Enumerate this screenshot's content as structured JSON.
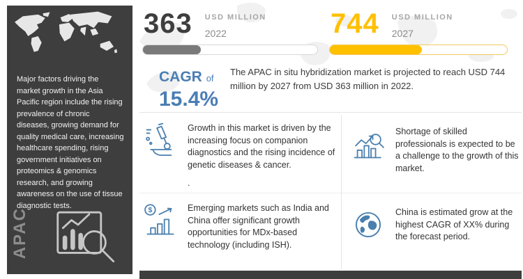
{
  "sidebar": {
    "description": "Major factors driving the market growth in the Asia Pacific region include the rising prevalence of chronic diseases, growing demand for quality medical care, increasing healthcare spending, rising government initiatives on proteomics & genomics research, and growing awareness on the use of tissue diagnostic tests.",
    "region_label": "APAC"
  },
  "stats": [
    {
      "value": "363",
      "unit": "USD MILLION",
      "year": "2022",
      "fill_percent": 33,
      "bar_color": "#7a7a7a"
    },
    {
      "value": "744",
      "unit": "USD MILLION",
      "year": "2027",
      "fill_percent": 52,
      "bar_color": "#ffc000"
    }
  ],
  "cagr": {
    "label": "CAGR",
    "preposition": "of",
    "value": "15.4%"
  },
  "projection_text": "The APAC in situ hybridization market is projected to reach USD 744 million by 2027 from USD 363 million in 2022.",
  "facts": [
    {
      "icon": "microscope-diagnostics-icon",
      "text": "Growth in this market is driven by the increasing focus on companion diagnostics and the rising incidence of genetic diseases & cancer.",
      "note": "."
    },
    {
      "icon": "chart-magnifier-icon",
      "text": "Shortage of skilled professionals is expected to be a challenge to the growth of this market."
    },
    {
      "icon": "bar-chart-dollar-icon",
      "text": "Emerging markets such as India and China offer significant growth opportunities for MDx-based technology (including ISH)."
    },
    {
      "icon": "globe-icon",
      "text": "China is estimated grow at the highest CAGR of XX% during the forecast period."
    }
  ],
  "colors": {
    "dark": "#3e3e3e",
    "gold": "#ffc000",
    "blue": "#4a7eb5",
    "icon_blue": "#4a7fae",
    "gray_text": "#8c8c8c",
    "light_map": "#e7e7e7"
  },
  "chart_data": {
    "type": "bar",
    "title": "APAC in situ hybridization market",
    "categories": [
      "2022",
      "2027"
    ],
    "values": [
      363,
      744
    ],
    "unit": "USD Million",
    "cagr_percent": 15.4,
    "note": "Progress-pill bars: 2022 value shown ~33% filled (gray), 2027 value shown ~52% filled (gold)"
  }
}
